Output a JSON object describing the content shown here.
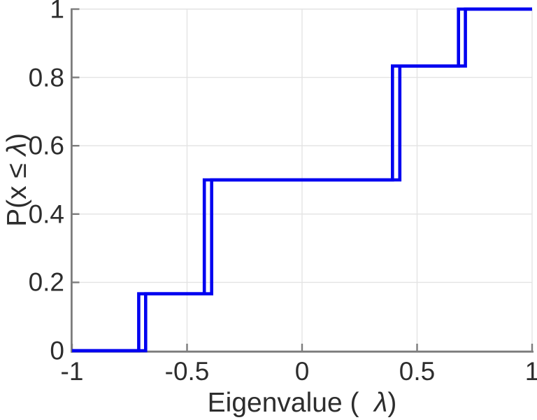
{
  "figure": {
    "title": "",
    "xlabel": {
      "pre": "Eigenvalue (  ",
      "lambda": "λ",
      "post": ")"
    },
    "ylabel": {
      "pre": "P(x ≤ ",
      "lambda": "λ",
      "post": ")"
    }
  },
  "chart_data": {
    "type": "line",
    "subtype": "empirical-cdf-step",
    "title": "",
    "xlabel": "Eigenvalue (λ)",
    "ylabel": "P(x ≤ λ)",
    "xlim": [
      -1,
      1
    ],
    "ylim": [
      0,
      1
    ],
    "xticks": [
      -1,
      -0.5,
      0,
      0.5,
      1
    ],
    "xtick_labels": [
      "-1",
      "-0.5",
      "0",
      "0.5",
      "1"
    ],
    "yticks": [
      0,
      0.2,
      0.4,
      0.6,
      0.8,
      1
    ],
    "ytick_labels": [
      "0",
      "0.2",
      "0.4",
      "0.6",
      "0.8",
      "1"
    ],
    "grid": true,
    "legend": "none",
    "line_color": "#0000f0",
    "grid_color": "#e3e3e3",
    "axis_color": "#7d7d7d",
    "text_color": "#2d2d2d",
    "cdf_levels": [
      0,
      0.1667,
      0.5,
      0.8333,
      1
    ],
    "series": [
      {
        "name": "ecdf-outer",
        "color": "#0000f0",
        "jump_x": [
          -0.71,
          -0.425,
          0.425,
          0.71
        ],
        "x": [
          -1,
          -0.71,
          -0.71,
          -0.425,
          -0.425,
          0.425,
          0.425,
          0.71,
          0.71,
          1
        ],
        "y": [
          0,
          0,
          0.1667,
          0.1667,
          0.5,
          0.5,
          0.8333,
          0.8333,
          1,
          1
        ]
      },
      {
        "name": "ecdf-inner",
        "color": "#0000f0",
        "jump_x": [
          -0.68,
          -0.393,
          0.393,
          0.68
        ],
        "x": [
          -1,
          -0.68,
          -0.68,
          -0.393,
          -0.393,
          0.393,
          0.393,
          0.68,
          0.68,
          1
        ],
        "y": [
          0,
          0,
          0.1667,
          0.1667,
          0.5,
          0.5,
          0.8333,
          0.8333,
          1,
          1
        ]
      }
    ]
  }
}
